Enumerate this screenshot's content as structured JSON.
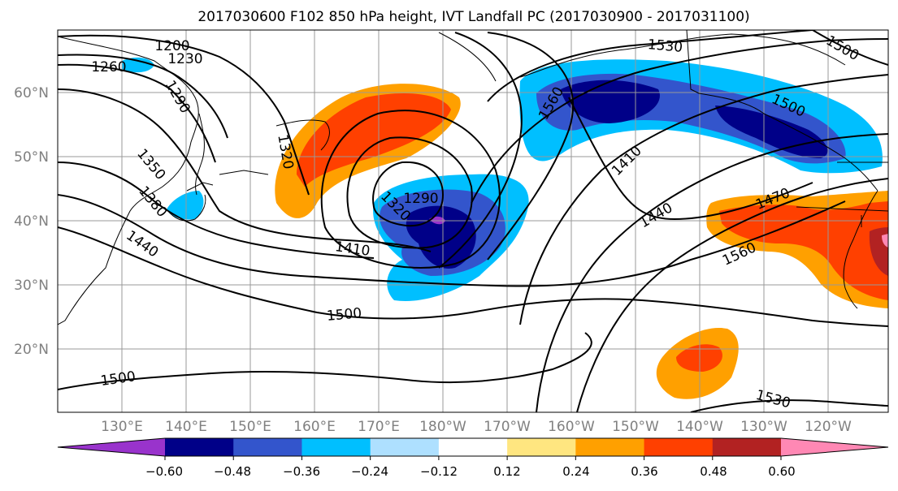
{
  "title": "2017030600 F102 850 hPa height, IVT Landfall PC (2017030900 - 2017031100)",
  "map": {
    "lat_labels": [
      "60°N",
      "50°N",
      "40°N",
      "30°N",
      "20°N"
    ],
    "lon_labels": [
      "130°E",
      "140°E",
      "150°E",
      "160°E",
      "170°E",
      "180°W",
      "170°W",
      "160°W",
      "150°W",
      "140°W",
      "130°W",
      "120°W"
    ],
    "contour_labels": [
      "1200",
      "1230",
      "1260",
      "1290",
      "1320",
      "1350",
      "1380",
      "1440",
      "1410",
      "1290",
      "1320",
      "1500",
      "1500",
      "1530",
      "1560",
      "1500",
      "1410",
      "1440",
      "1470",
      "1560",
      "1530",
      "1500"
    ]
  },
  "colorbar": {
    "tick_labels": [
      "−0.60",
      "−0.48",
      "−0.36",
      "−0.24",
      "−0.12",
      "0.12",
      "0.24",
      "0.36",
      "0.48",
      "0.60"
    ],
    "colors": [
      "#9933cc",
      "#000088",
      "#3355cc",
      "#00bfff",
      "#aee0ff",
      "#ffffff",
      "#ffe680",
      "#ffa000",
      "#ff4000",
      "#b22222",
      "#ff88b4"
    ]
  }
}
